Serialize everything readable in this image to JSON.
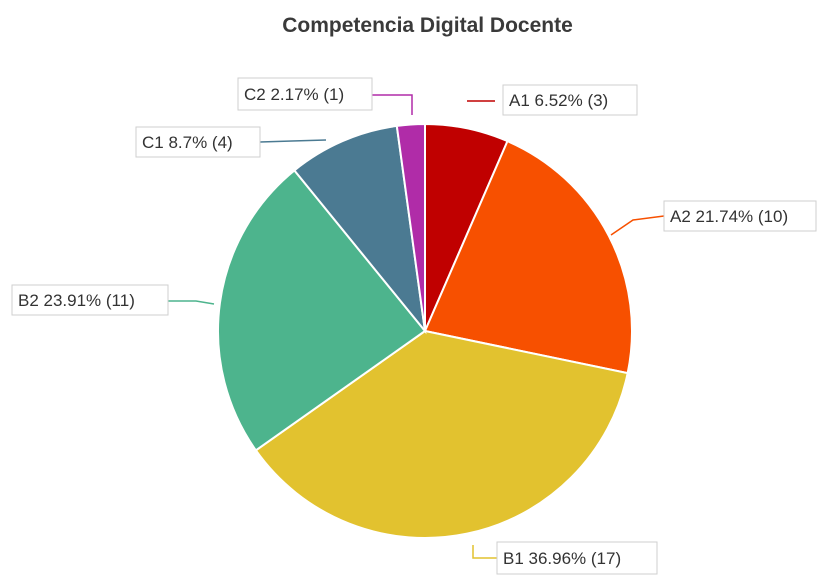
{
  "chart_data": {
    "type": "pie",
    "title": "Competencia Digital Docente",
    "slices": [
      {
        "name": "A1",
        "pct": "6.52%",
        "count": 3,
        "color": "#c00000"
      },
      {
        "name": "A2",
        "pct": "21.74%",
        "count": 10,
        "color": "#f75000"
      },
      {
        "name": "B1",
        "pct": "36.96%",
        "count": 17,
        "color": "#e2c22f"
      },
      {
        "name": "B2",
        "pct": "23.91%",
        "count": 11,
        "color": "#4db48d"
      },
      {
        "name": "C1",
        "pct": "8.7%",
        "count": 4,
        "color": "#4b7a92"
      },
      {
        "name": "C2",
        "pct": "2.17%",
        "count": 1,
        "color": "#b02ca8"
      }
    ],
    "labels": [
      "A1 6.52% (3)",
      "A2 21.74% (10)",
      "B1 36.96% (17)",
      "B2 23.91% (11)",
      "C1 8.7% (4)",
      "C2 2.17% (1)"
    ],
    "start_angle": "top",
    "direction": "clockwise",
    "legend": "none",
    "data_labels": "outside with leader lines"
  }
}
